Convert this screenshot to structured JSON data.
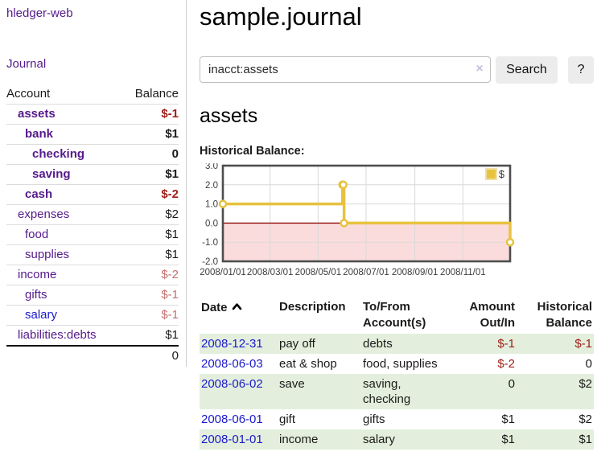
{
  "app": {
    "brand": "hledger-web"
  },
  "sidebar": {
    "journal_label": "Journal",
    "accounts_table": {
      "headers": {
        "account": "Account",
        "balance": "Balance"
      },
      "rows": [
        {
          "name": "assets",
          "depth": 1,
          "bold": true,
          "balance": "$-1",
          "negative": "strong",
          "link": "purple"
        },
        {
          "name": "bank",
          "depth": 2,
          "bold": true,
          "balance": "$1",
          "negative": "none",
          "link": "purple"
        },
        {
          "name": "checking",
          "depth": 3,
          "bold": true,
          "balance": "0",
          "negative": "none",
          "link": "purple"
        },
        {
          "name": "saving",
          "depth": 3,
          "bold": true,
          "balance": "$1",
          "negative": "none",
          "link": "purple"
        },
        {
          "name": "cash",
          "depth": 2,
          "bold": true,
          "balance": "$-2",
          "negative": "strong",
          "link": "purple"
        },
        {
          "name": "expenses",
          "depth": 1,
          "bold": false,
          "balance": "$2",
          "negative": "none",
          "link": "purple"
        },
        {
          "name": "food",
          "depth": 2,
          "bold": false,
          "balance": "$1",
          "negative": "none",
          "link": "purple"
        },
        {
          "name": "supplies",
          "depth": 2,
          "bold": false,
          "balance": "$1",
          "negative": "none",
          "link": "purple"
        },
        {
          "name": "income",
          "depth": 1,
          "bold": false,
          "balance": "$-2",
          "negative": "soft",
          "link": "purple"
        },
        {
          "name": "gifts",
          "depth": 2,
          "bold": false,
          "balance": "$-1",
          "negative": "soft",
          "link": "purple"
        },
        {
          "name": "salary",
          "depth": 2,
          "bold": false,
          "balance": "$-1",
          "negative": "soft",
          "link": "blue"
        },
        {
          "name": "liabilities:debts",
          "depth": 1,
          "bold": false,
          "balance": "$1",
          "negative": "none",
          "link": "purple"
        }
      ],
      "total": "0"
    }
  },
  "header": {
    "title": "sample.journal"
  },
  "search": {
    "value": "inacct:assets",
    "clear_label": "×",
    "button": "Search",
    "help_button": "?"
  },
  "account_page": {
    "title": "assets",
    "chart_label": "Historical Balance:"
  },
  "chart_data": {
    "type": "line",
    "title": "Historical Balance",
    "step": true,
    "series": [
      {
        "name": "$",
        "color": "#e8c23f",
        "points": [
          [
            "2008-01-01",
            1
          ],
          [
            "2008-06-01",
            2
          ],
          [
            "2008-06-02",
            2
          ],
          [
            "2008-06-03",
            0
          ],
          [
            "2008-12-31",
            -1
          ]
        ]
      }
    ],
    "xlim": [
      "2008-01-01",
      "2008-12-31"
    ],
    "ylim": [
      -2.0,
      3.0
    ],
    "yticks": [
      3.0,
      2.0,
      1.0,
      0.0,
      -1.0,
      -2.0
    ],
    "xticks": [
      "2008/01/01",
      "2008/03/01",
      "2008/05/01",
      "2008/07/01",
      "2008/09/01",
      "2008/11/01"
    ],
    "legend": {
      "position": "top-right",
      "entries": [
        {
          "label": "$",
          "color": "#e8c23f"
        }
      ]
    },
    "grid": true,
    "negative_region_color": "#fbdcdc",
    "zero_line_color": "#8e0b0b",
    "grid_color": "#d9d9d9",
    "border_color": "#4d4d4d"
  },
  "register_table": {
    "headers": {
      "date": "Date",
      "description": "Description",
      "accounts": "To/From Account(s)",
      "amount": "Amount Out/In",
      "balance": "Historical Balance"
    },
    "rows": [
      {
        "date": "2008-12-31",
        "description": "pay off",
        "accounts": "debts",
        "amount": "$-1",
        "balance": "$-1"
      },
      {
        "date": "2008-06-03",
        "description": "eat & shop",
        "accounts": "food, supplies",
        "amount": "$-2",
        "balance": "0"
      },
      {
        "date": "2008-06-02",
        "description": "save",
        "accounts": "saving, checking",
        "amount": "0",
        "balance": "$2"
      },
      {
        "date": "2008-06-01",
        "description": "gift",
        "accounts": "gifts",
        "amount": "$1",
        "balance": "$2"
      },
      {
        "date": "2008-01-01",
        "description": "income",
        "accounts": "salary",
        "amount": "$1",
        "balance": "$1"
      }
    ]
  }
}
